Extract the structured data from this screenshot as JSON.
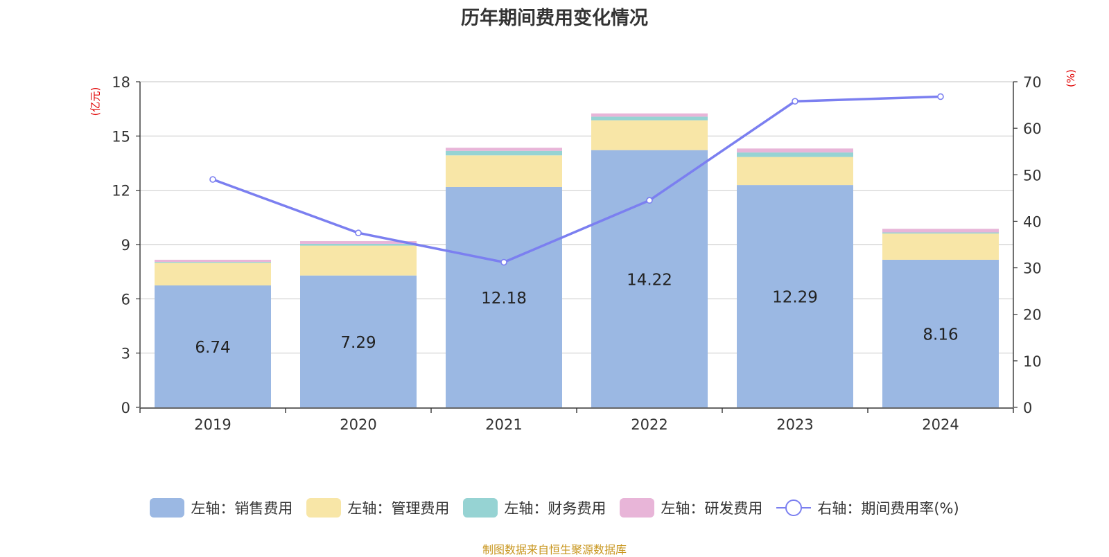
{
  "title": "历年期间费用变化情况",
  "left_unit": "(亿元)",
  "right_unit": "(%)",
  "source": "制图数据来自恒生聚源数据库",
  "legend": [
    {
      "label": "左轴：销售费用",
      "color": "#9bb8e3"
    },
    {
      "label": "左轴：管理费用",
      "color": "#f8e6a7"
    },
    {
      "label": "左轴：财务费用",
      "color": "#96d3d3"
    },
    {
      "label": "左轴：研发费用",
      "color": "#e8b5d8"
    },
    {
      "label": "右轴：期间费用率(%)",
      "color": "#7b7ff0"
    }
  ],
  "chart_data": {
    "type": "bar",
    "stacked": true,
    "title": "历年期间费用变化情况",
    "categories": [
      "2019",
      "2020",
      "2021",
      "2022",
      "2023",
      "2024"
    ],
    "series": [
      {
        "name": "左轴：销售费用",
        "axis": "left",
        "values": [
          6.74,
          7.29,
          12.18,
          14.22,
          12.29,
          8.16
        ],
        "color": "#9bb8e3",
        "labels": [
          "6.74",
          "7.29",
          "12.18",
          "14.22",
          "12.29",
          "8.16"
        ]
      },
      {
        "name": "左轴：管理费用",
        "axis": "left",
        "values": [
          1.25,
          1.65,
          1.75,
          1.65,
          1.55,
          1.45
        ],
        "color": "#f8e6a7"
      },
      {
        "name": "左轴：财务费用",
        "axis": "left",
        "values": [
          0.05,
          0.1,
          0.25,
          0.2,
          0.25,
          0.06
        ],
        "color": "#96d3d3"
      },
      {
        "name": "左轴：研发费用",
        "axis": "left",
        "values": [
          0.12,
          0.15,
          0.17,
          0.18,
          0.22,
          0.2
        ],
        "color": "#e8b5d8"
      },
      {
        "name": "右轴：期间费用率(%)",
        "axis": "right",
        "type": "line",
        "values": [
          49.0,
          37.5,
          31.2,
          44.5,
          65.8,
          66.8
        ],
        "color": "#7b7ff0"
      }
    ],
    "y_left": {
      "label": "(亿元)",
      "ylim": [
        0,
        18
      ],
      "ticks": [
        0,
        3,
        6,
        9,
        12,
        15,
        18
      ]
    },
    "y_right": {
      "label": "(%)",
      "ylim": [
        0,
        70
      ],
      "ticks": [
        0,
        10,
        20,
        30,
        40,
        50,
        60,
        70
      ]
    },
    "grid": true,
    "legend_position": "bottom"
  }
}
